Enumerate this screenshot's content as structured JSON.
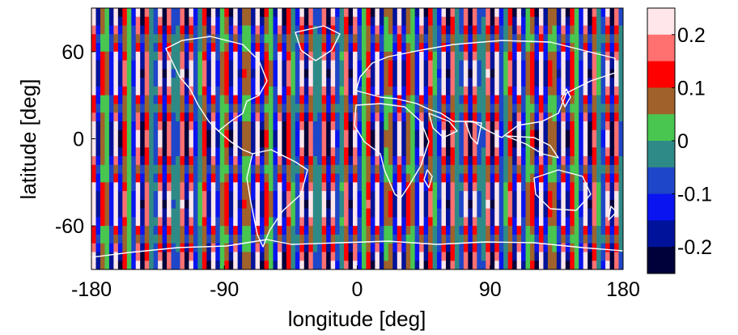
{
  "chart_data": {
    "type": "heatmap",
    "title": "",
    "xlabel": "longitude [deg]",
    "ylabel": "latitude [deg]",
    "xlim": [
      -180,
      180
    ],
    "ylim": [
      -90,
      90
    ],
    "x_ticks": [
      -180,
      -90,
      0,
      90,
      180
    ],
    "x_tick_labels": [
      "-180",
      "-90",
      "0",
      "90",
      "180"
    ],
    "y_ticks": [
      60,
      0,
      -60
    ],
    "y_tick_labels": [
      "60",
      "0",
      "-60"
    ],
    "overlay": "white coastline outlines",
    "pattern": "striped field: alternating vertical stripes across longitude, with horizontal bands across latitude",
    "colorbar": {
      "range": [
        -0.25,
        0.25
      ],
      "levels": [
        {
          "from": 0.2,
          "to": 0.25,
          "color": "#ffe6ea"
        },
        {
          "from": 0.15,
          "to": 0.2,
          "color": "#ff7070"
        },
        {
          "from": 0.1,
          "to": 0.15,
          "color": "#ff0000"
        },
        {
          "from": 0.05,
          "to": 0.1,
          "color": "#a0622a"
        },
        {
          "from": 0.0,
          "to": 0.05,
          "color": "#48c650"
        },
        {
          "from": -0.05,
          "to": 0.0,
          "color": "#2e8a86"
        },
        {
          "from": -0.1,
          "to": -0.05,
          "color": "#1e46c8"
        },
        {
          "from": -0.15,
          "to": -0.1,
          "color": "#0a14f0"
        },
        {
          "from": -0.2,
          "to": -0.15,
          "color": "#00129a"
        },
        {
          "from": -0.25,
          "to": -0.2,
          "color": "#00003a"
        }
      ],
      "ticks": [
        0.2,
        0.1,
        0,
        -0.1,
        -0.2
      ],
      "tick_labels": [
        "0.2",
        "0.1",
        "0",
        "-0.1",
        "-0.2"
      ]
    }
  }
}
